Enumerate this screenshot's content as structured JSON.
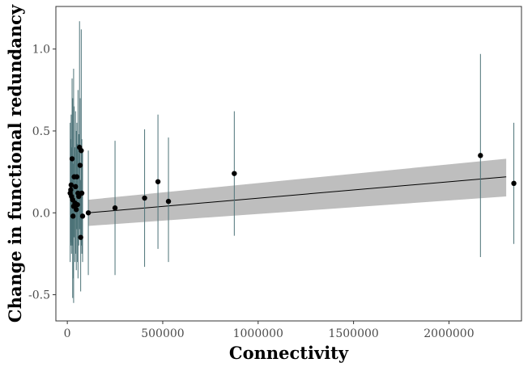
{
  "chart_data": {
    "type": "scatter",
    "title": "",
    "xlabel": "Connectivity",
    "ylabel": "Change in functional redundancy",
    "xlim": [
      -60000,
      2380000
    ],
    "ylim": [
      -0.66,
      1.26
    ],
    "x_ticks": [
      0,
      500000,
      1000000,
      1500000,
      2000000
    ],
    "x_tick_labels": [
      "0",
      "500000",
      "1000000",
      "1500000",
      "2000000"
    ],
    "y_ticks": [
      -0.5,
      0.0,
      0.5,
      1.0
    ],
    "y_tick_labels": [
      "-0.5",
      "0.0",
      "0.5",
      "1.0"
    ],
    "grid": false,
    "colors": {
      "point": "#000000",
      "errorbar": "#4d7378",
      "fit_line": "#000000",
      "ribbon": "#bebebe",
      "panel_border": "#333333"
    },
    "fit": {
      "x": [
        110000,
        2300000
      ],
      "y": [
        0.0,
        0.22
      ],
      "ribbon_lower": [
        -0.08,
        0.1
      ],
      "ribbon_upper": [
        0.08,
        0.33
      ]
    },
    "points": [
      {
        "x": 15000,
        "y": 0.12,
        "ymin": -0.3,
        "ymax": 0.55
      },
      {
        "x": 18000,
        "y": 0.14,
        "ymin": -0.2,
        "ymax": 0.45
      },
      {
        "x": 20000,
        "y": 0.17,
        "ymin": -0.18,
        "ymax": 0.6
      },
      {
        "x": 22000,
        "y": 0.1,
        "ymin": -0.25,
        "ymax": 0.4
      },
      {
        "x": 25000,
        "y": 0.33,
        "ymin": -0.2,
        "ymax": 0.82
      },
      {
        "x": 28000,
        "y": 0.08,
        "ymin": -0.52,
        "ymax": 0.7
      },
      {
        "x": 30000,
        "y": -0.02,
        "ymin": -0.4,
        "ymax": 0.3
      },
      {
        "x": 33000,
        "y": 0.04,
        "ymin": -0.55,
        "ymax": 0.88
      },
      {
        "x": 36000,
        "y": 0.22,
        "ymin": -0.15,
        "ymax": 0.65
      },
      {
        "x": 40000,
        "y": 0.06,
        "ymin": -0.3,
        "ymax": 0.4
      },
      {
        "x": 43000,
        "y": 0.16,
        "ymin": -0.25,
        "ymax": 0.62
      },
      {
        "x": 47000,
        "y": 0.02,
        "ymin": -0.35,
        "ymax": 0.5
      },
      {
        "x": 50000,
        "y": 0.22,
        "ymin": -0.1,
        "ymax": 0.55
      },
      {
        "x": 53000,
        "y": 0.05,
        "ymin": -0.3,
        "ymax": 0.42
      },
      {
        "x": 56000,
        "y": 0.12,
        "ymin": -0.4,
        "ymax": 0.75
      },
      {
        "x": 60000,
        "y": 0.1,
        "ymin": -0.2,
        "ymax": 0.48
      },
      {
        "x": 64000,
        "y": 0.4,
        "ymin": -0.1,
        "ymax": 1.17
      },
      {
        "x": 67000,
        "y": 0.29,
        "ymin": -0.15,
        "ymax": 0.7
      },
      {
        "x": 70000,
        "y": -0.15,
        "ymin": -0.48,
        "ymax": 0.2
      },
      {
        "x": 73000,
        "y": 0.38,
        "ymin": -0.2,
        "ymax": 1.12
      },
      {
        "x": 76000,
        "y": 0.12,
        "ymin": -0.25,
        "ymax": 0.45
      },
      {
        "x": 80000,
        "y": -0.02,
        "ymin": -0.3,
        "ymax": 0.38
      },
      {
        "x": 110000,
        "y": 0.0,
        "ymin": -0.38,
        "ymax": 0.38
      },
      {
        "x": 250000,
        "y": 0.03,
        "ymin": -0.38,
        "ymax": 0.44
      },
      {
        "x": 405000,
        "y": 0.09,
        "ymin": -0.33,
        "ymax": 0.51
      },
      {
        "x": 475000,
        "y": 0.19,
        "ymin": -0.22,
        "ymax": 0.6
      },
      {
        "x": 530000,
        "y": 0.07,
        "ymin": -0.3,
        "ymax": 0.46
      },
      {
        "x": 875000,
        "y": 0.24,
        "ymin": -0.14,
        "ymax": 0.62
      },
      {
        "x": 2165000,
        "y": 0.35,
        "ymin": -0.27,
        "ymax": 0.97
      },
      {
        "x": 2340000,
        "y": 0.18,
        "ymin": -0.19,
        "ymax": 0.55
      }
    ]
  }
}
